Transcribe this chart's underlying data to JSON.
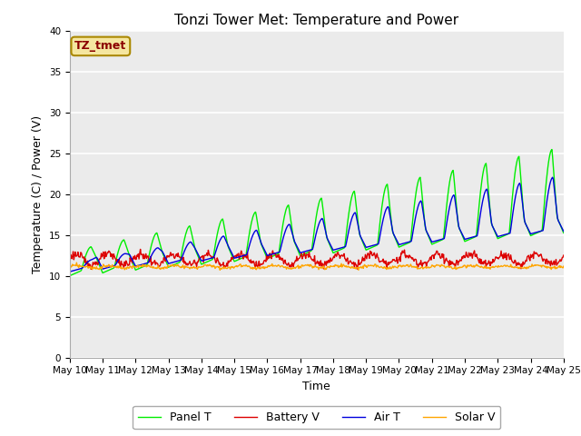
{
  "title": "Tonzi Tower Met: Temperature and Power",
  "xlabel": "Time",
  "ylabel": "Temperature (C) / Power (V)",
  "ylim": [
    0,
    40
  ],
  "x_tick_labels": [
    "May 10",
    "May 11",
    "May 12",
    "May 13",
    "May 14",
    "May 15",
    "May 16",
    "May 17",
    "May 18",
    "May 19",
    "May 20",
    "May 21",
    "May 22",
    "May 23",
    "May 24",
    "May 25"
  ],
  "legend_label": "TZ_tmet",
  "legend_entries": [
    "Panel T",
    "Battery V",
    "Air T",
    "Solar V"
  ],
  "line_colors": [
    "#00EE00",
    "#DD0000",
    "#0000DD",
    "#FFA500"
  ],
  "background_color": "#EBEBEB",
  "title_fontsize": 11,
  "axis_fontsize": 9,
  "tick_fontsize": 7.5,
  "legend_fontsize": 9
}
